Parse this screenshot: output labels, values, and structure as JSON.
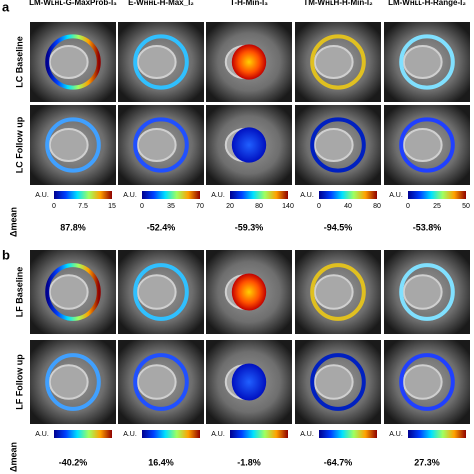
{
  "panels": [
    {
      "label": "a",
      "columns": [
        "LM-Wʟʜʟ-G-MaxProb-I₃",
        "E-Wʜʜʟ-H-Max_I₂",
        "T-H-Min-I₃",
        "TM-WʜʟH-H-Min-I₂",
        "LM-Wʜʟʟ-H-Range-I₂"
      ],
      "rows": [
        "LC Baseline",
        "LC Follow up"
      ],
      "colorbars": [
        {
          "unit": "A.U.",
          "ticks": [
            "0",
            "7.5",
            "15"
          ]
        },
        {
          "unit": "A.U.",
          "ticks": [
            "0",
            "35",
            "70"
          ]
        },
        {
          "unit": "A.U.",
          "ticks": [
            "20",
            "80",
            "140"
          ]
        },
        {
          "unit": "A.U.",
          "ticks": [
            "0",
            "40",
            "80"
          ]
        },
        {
          "unit": "A.U.",
          "ticks": [
            "0",
            "25",
            "50"
          ]
        }
      ],
      "delta_label": "Δmean",
      "delta_values": [
        "87.8%",
        "-52.4%",
        "-59.3%",
        "-94.5%",
        "-53.8%"
      ]
    },
    {
      "label": "b",
      "rows": [
        "LF Baseline",
        "LF Follow up"
      ],
      "colorbars": [
        {
          "unit": "A.U."
        },
        {
          "unit": "A.U."
        },
        {
          "unit": "A.U."
        },
        {
          "unit": "A.U."
        },
        {
          "unit": "A.U."
        }
      ],
      "delta_label": "Δmean",
      "delta_values": [
        "-40.2%",
        "16.4%",
        "-1.8%",
        "-64.7%",
        "27.3%"
      ]
    }
  ]
}
